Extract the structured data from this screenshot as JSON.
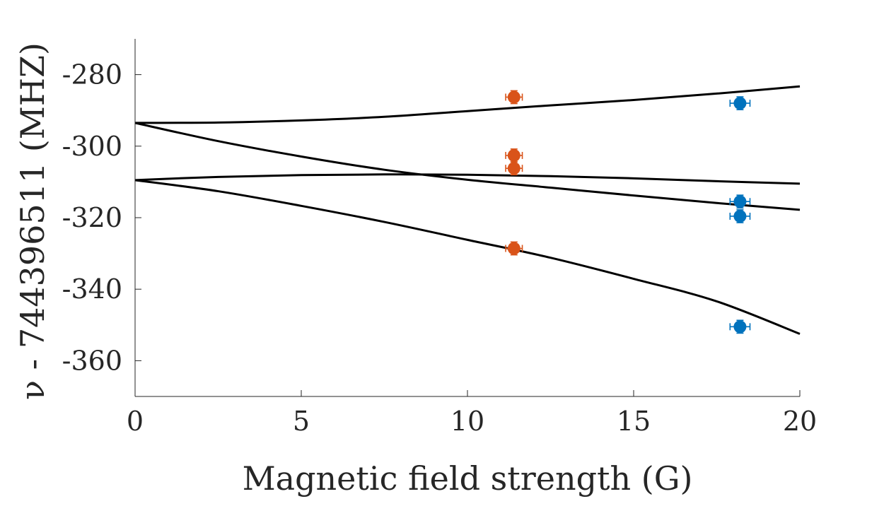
{
  "chart_data": {
    "type": "scatter",
    "xlabel": "Magnetic field strength (G)",
    "ylabel": "ν - 744396511 (MHZ)",
    "xlim": [
      0,
      20
    ],
    "ylim": [
      -370,
      -270
    ],
    "xticks": [
      0,
      5,
      10,
      15,
      20
    ],
    "yticks": [
      -280,
      -300,
      -320,
      -340,
      -360
    ],
    "grid": false,
    "series": [
      {
        "color": "#D95319",
        "points": [
          {
            "x": 11.4,
            "y": -286.3,
            "xerr": 0.25,
            "yerr": 1.8
          },
          {
            "x": 11.4,
            "y": -302.6,
            "xerr": 0.25,
            "yerr": 1.8
          },
          {
            "x": 11.4,
            "y": -306.2,
            "xerr": 0.25,
            "yerr": 1.8
          },
          {
            "x": 11.4,
            "y": -328.6,
            "xerr": 0.25,
            "yerr": 1.8
          }
        ]
      },
      {
        "color": "#0072BD",
        "points": [
          {
            "x": 18.2,
            "y": -288.0,
            "xerr": 0.3,
            "yerr": 1.8
          },
          {
            "x": 18.2,
            "y": -315.5,
            "xerr": 0.3,
            "yerr": 1.8
          },
          {
            "x": 18.2,
            "y": -319.6,
            "xerr": 0.3,
            "yerr": 1.8
          },
          {
            "x": 18.2,
            "y": -350.5,
            "xerr": 0.3,
            "yerr": 1.8
          }
        ]
      }
    ],
    "curves": [
      {
        "x": [
          0,
          2.5,
          5,
          7.5,
          10,
          12.5,
          15,
          17.5,
          20
        ],
        "y": [
          -293.5,
          -293.4,
          -292.8,
          -291.8,
          -290.2,
          -288.6,
          -287.1,
          -285.3,
          -283.3
        ]
      },
      {
        "x": [
          0,
          2.5,
          5,
          7.5,
          10,
          12.5,
          15,
          17.5,
          20
        ],
        "y": [
          -293.5,
          -298.6,
          -302.9,
          -306.6,
          -309.4,
          -311.6,
          -313.8,
          -315.9,
          -317.8
        ]
      },
      {
        "x": [
          0,
          2.5,
          5,
          7.5,
          10,
          12.5,
          15,
          17.5,
          20
        ],
        "y": [
          -309.5,
          -308.6,
          -308.1,
          -307.9,
          -308.0,
          -308.4,
          -309.0,
          -309.8,
          -310.5
        ]
      },
      {
        "x": [
          0,
          2.5,
          5,
          7.5,
          10,
          12.5,
          15,
          17.5,
          20
        ],
        "y": [
          -309.5,
          -312.6,
          -316.7,
          -321.2,
          -326.2,
          -331.2,
          -337.1,
          -343.4,
          -352.5
        ]
      }
    ]
  }
}
